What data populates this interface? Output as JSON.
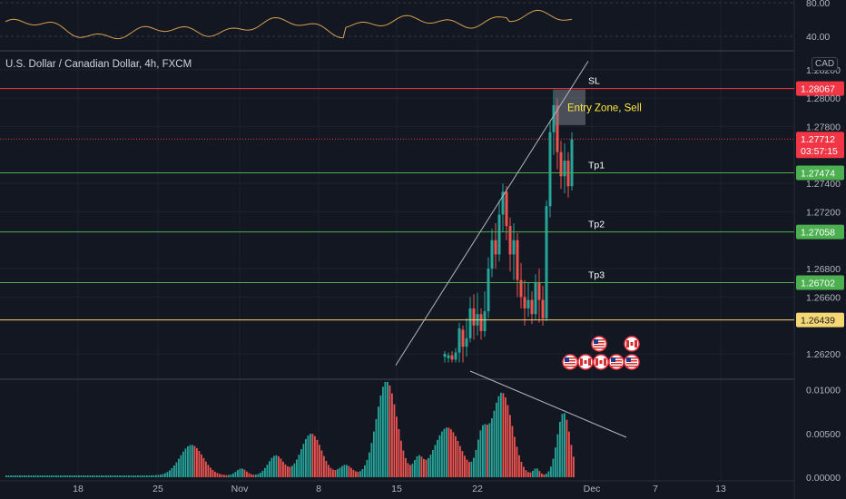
{
  "header": {
    "symbol_title": "U.S. Dollar / Canadian Dollar, 4h, FXCM",
    "currency_badge": "CAD"
  },
  "rsi_pane": {
    "ticks": [
      "80.00",
      "40.00"
    ],
    "line_color": "#d6a04e"
  },
  "price_axis": {
    "ticks": [
      "1.28200",
      "1.28000",
      "1.27800",
      "1.27400",
      "1.27200",
      "1.26800",
      "1.26600",
      "1.26200"
    ],
    "price_min": 1.2606,
    "price_max": 1.2832
  },
  "levels": [
    {
      "name": "sl",
      "label": "SL",
      "value": 1.28067,
      "badge": "1.28067",
      "color": "#f23645"
    },
    {
      "name": "tp1",
      "label": "Tp1",
      "value": 1.27474,
      "badge": "1.27474",
      "color": "#4caf50"
    },
    {
      "name": "tp2",
      "label": "Tp2",
      "value": 1.27058,
      "badge": "1.27058",
      "color": "#4caf50"
    },
    {
      "name": "tp3",
      "label": "Tp3",
      "value": 1.26702,
      "badge": "1.26702",
      "color": "#4caf50"
    },
    {
      "name": "base",
      "label": "",
      "value": 1.26439,
      "badge": "1.26439",
      "color": "#f7d774"
    }
  ],
  "last_price": {
    "value": 1.27712,
    "label": "1.27712",
    "countdown": "03:57:15",
    "color": "#f23645"
  },
  "entry_zone": {
    "label": "Entry Zone, Sell",
    "top": 1.2806,
    "bottom": 1.2781
  },
  "histogram_pane": {
    "ticks": [
      "0.01000",
      "0.00500",
      "0.00000"
    ],
    "max": 0.011
  },
  "time_axis": {
    "ticks": [
      "18",
      "25",
      "Nov",
      "8",
      "15",
      "22",
      "Dec",
      "7",
      "13"
    ]
  },
  "colors": {
    "up": "#26a69a",
    "down": "#ef5350",
    "trendline": "#b2b5be",
    "axis_text": "#b2b5be"
  },
  "event_icons": {
    "rows": [
      [
        "us-flag-icon",
        "ca-flag-icon"
      ],
      [
        "us-flag-icon",
        "ca-flag-icon",
        "ca-flag-icon",
        "us-flag-icon",
        "us-flag-icon"
      ]
    ]
  }
}
